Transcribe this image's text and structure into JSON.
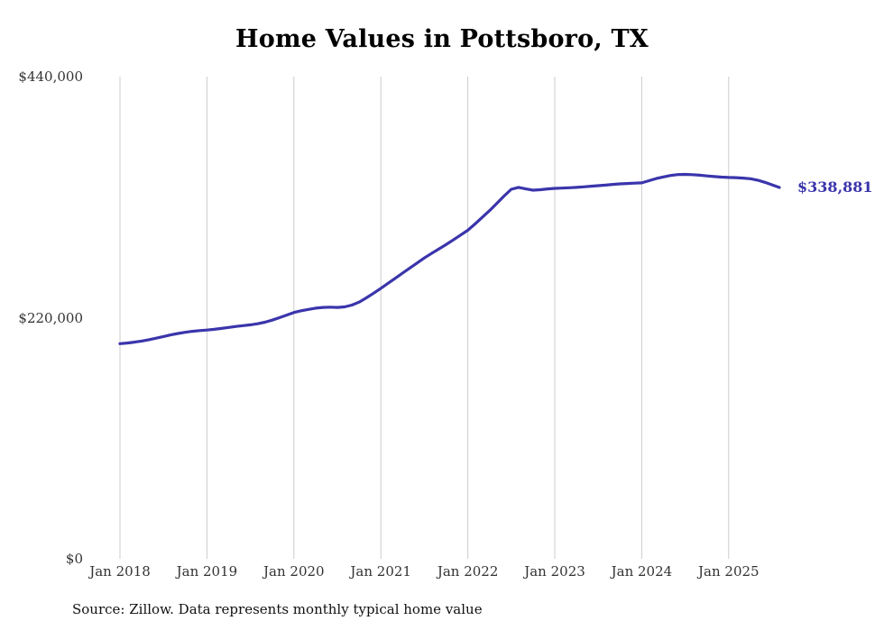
{
  "title": "Home Values in Pottsboro, TX",
  "footer": {
    "source": "Source: Zillow. Data represents monthly typical home value"
  },
  "chart_data": {
    "type": "line",
    "title": "Home Values in Pottsboro, TX",
    "series_name": "Monthly typical home value",
    "x_start": "2018-01",
    "frequency": "monthly",
    "x_tick_labels": [
      "Jan 2018",
      "Jan 2019",
      "Jan 2020",
      "Jan 2021",
      "Jan 2022",
      "Jan 2023",
      "Jan 2024",
      "Jan 2025"
    ],
    "y_ticks": [
      0,
      220000,
      440000
    ],
    "y_tick_labels": [
      "$0",
      "$220,000",
      "$440,000"
    ],
    "ylim": [
      0,
      440000
    ],
    "grid": "vertical-only",
    "legend": "none",
    "line_color": "#3a35ab",
    "grid_color": "#cccccc",
    "end_label": "$338,881",
    "end_value": 338881,
    "values": [
      196300,
      196900,
      197700,
      198700,
      199900,
      201300,
      202800,
      204300,
      205600,
      206700,
      207600,
      208200,
      208700,
      209400,
      210200,
      211100,
      212000,
      212800,
      213500,
      214500,
      215900,
      217800,
      220000,
      222400,
      224800,
      226300,
      227600,
      228700,
      229400,
      229600,
      229400,
      229900,
      231500,
      234200,
      238100,
      242400,
      246800,
      251400,
      256000,
      260700,
      265300,
      269900,
      274500,
      278600,
      282700,
      286700,
      291000,
      295400,
      299800,
      305500,
      311600,
      317700,
      324300,
      331000,
      337200,
      338900,
      337500,
      336400,
      336800,
      337500,
      338000,
      338300,
      338600,
      338900,
      339400,
      340000,
      340500,
      341000,
      341600,
      342100,
      342500,
      342800,
      343000,
      345000,
      347000,
      348500,
      349800,
      350600,
      350800,
      350500,
      350000,
      349400,
      348800,
      348300,
      348000,
      347800,
      347400,
      346800,
      345500,
      343500,
      341200,
      338881
    ]
  }
}
